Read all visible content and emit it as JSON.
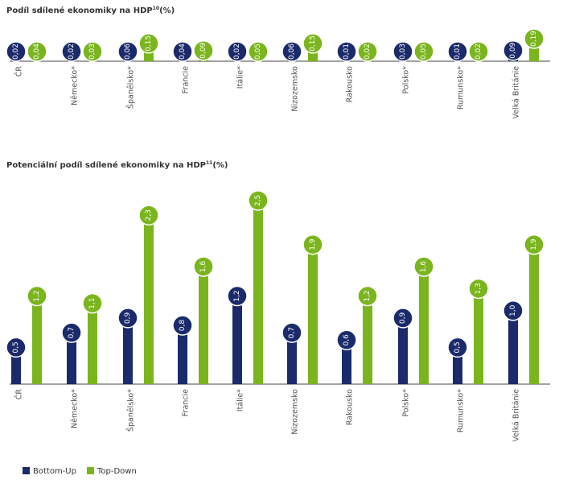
{
  "colors": {
    "bottom_up": "#1b2a6b",
    "top_down": "#7ab51d",
    "axis": "#444444"
  },
  "chart_data": [
    {
      "type": "bar",
      "title": "Podíl sdílené ekonomiky na HDP",
      "title_sup": "10",
      "title_suffix": "(%)",
      "categories": [
        "ČR",
        "Německo*",
        "Španělsko*",
        "Francie",
        "Itálie*",
        "Nizozemsko",
        "Rakousko",
        "Polsko*",
        "Rumunsko*",
        "Velká Británie"
      ],
      "series": [
        {
          "name": "Bottom-Up",
          "values": [
            0.02,
            0.02,
            0.06,
            0.04,
            0.02,
            0.06,
            0.01,
            0.03,
            0.01,
            0.09
          ],
          "labels": [
            "0,02",
            "0,02",
            "0,06",
            "0,04",
            "0,02",
            "0,06",
            "0,01",
            "0,03",
            "0,01",
            "0,09"
          ]
        },
        {
          "name": "Top-Down",
          "values": [
            0.04,
            0.03,
            0.15,
            0.09,
            0.05,
            0.15,
            0.02,
            0.05,
            0.02,
            0.19
          ],
          "labels": [
            "0,04",
            "0,03",
            "0,15",
            "0,09",
            "0,05",
            "0,15",
            "0,02",
            "0,05",
            "0,02",
            "0,19"
          ]
        }
      ],
      "ylim": [
        0,
        0.19
      ]
    },
    {
      "type": "bar",
      "title": "Potenciální podíl sdílené ekonomiky na HDP",
      "title_sup": "11",
      "title_suffix": "(%)",
      "categories": [
        "ČR",
        "Německo*",
        "Španělsko*",
        "Francie",
        "Itálie*",
        "Nizozemsko",
        "Rakousko",
        "Polsko*",
        "Rumunsko*",
        "Velká Británie"
      ],
      "series": [
        {
          "name": "Bottom-Up",
          "values": [
            0.5,
            0.7,
            0.9,
            0.8,
            1.2,
            0.7,
            0.6,
            0.9,
            0.5,
            1.0
          ],
          "labels": [
            "0,5",
            "0,7",
            "0,9",
            "0,8",
            "1,2",
            "0,7",
            "0,6",
            "0,9",
            "0,5",
            "1,0"
          ]
        },
        {
          "name": "Top-Down",
          "values": [
            1.2,
            1.1,
            2.3,
            1.6,
            2.5,
            1.9,
            1.2,
            1.6,
            1.3,
            1.9
          ],
          "labels": [
            "1,2",
            "1,1",
            "2,3",
            "1,6",
            "2,5",
            "1,9",
            "1,2",
            "1,6",
            "1,3",
            "1,9"
          ]
        }
      ],
      "ylim": [
        0,
        2.5
      ]
    }
  ],
  "legend": [
    {
      "name": "Bottom-Up",
      "color": "#1b2a6b"
    },
    {
      "name": "Top-Down",
      "color": "#7ab51d"
    }
  ]
}
